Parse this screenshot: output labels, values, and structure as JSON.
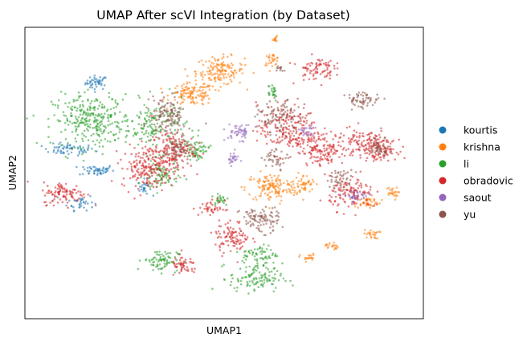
{
  "chart_data": {
    "type": "scatter",
    "title": "UMAP After scVI Integration (by Dataset)",
    "xlabel": "UMAP1",
    "ylabel": "UMAP2",
    "xticks": [],
    "yticks": [],
    "grid": false,
    "legend_position": "right",
    "xlim": [
      0,
      100
    ],
    "ylim": [
      0,
      100
    ],
    "series": [
      {
        "name": "kourtis",
        "color": "#1f77b4"
      },
      {
        "name": "krishna",
        "color": "#ff7f0e"
      },
      {
        "name": "li",
        "color": "#2ca02c"
      },
      {
        "name": "obradovic",
        "color": "#d62728"
      },
      {
        "name": "saout",
        "color": "#9467bd"
      },
      {
        "name": "yu",
        "color": "#8c564b"
      }
    ],
    "clusters": [
      {
        "series": "kourtis",
        "cx": 18,
        "cy": 81,
        "rx": 2.5,
        "ry": 2.2,
        "n": 45
      },
      {
        "series": "kourtis",
        "cx": 11,
        "cy": 58,
        "rx": 6,
        "ry": 1.8,
        "n": 60
      },
      {
        "series": "kourtis",
        "cx": 18,
        "cy": 51,
        "rx": 4,
        "ry": 1.8,
        "n": 50
      },
      {
        "series": "kourtis",
        "cx": 14,
        "cy": 40,
        "rx": 3,
        "ry": 2.5,
        "n": 35
      },
      {
        "series": "kourtis",
        "cx": 30,
        "cy": 45,
        "rx": 1.5,
        "ry": 2.5,
        "n": 25
      },
      {
        "series": "krishna",
        "cx": 49,
        "cy": 85,
        "rx": 5.5,
        "ry": 4.5,
        "n": 150
      },
      {
        "series": "krishna",
        "cx": 42,
        "cy": 77,
        "rx": 5,
        "ry": 3.5,
        "n": 120
      },
      {
        "series": "krishna",
        "cx": 63,
        "cy": 96,
        "rx": 0.8,
        "ry": 0.8,
        "n": 12
      },
      {
        "series": "krishna",
        "cx": 62,
        "cy": 89,
        "rx": 1.8,
        "ry": 1.8,
        "n": 30
      },
      {
        "series": "krishna",
        "cx": 62,
        "cy": 45,
        "rx": 6,
        "ry": 4.5,
        "n": 140
      },
      {
        "series": "krishna",
        "cx": 70,
        "cy": 46,
        "rx": 2.5,
        "ry": 3,
        "n": 45
      },
      {
        "series": "krishna",
        "cx": 86,
        "cy": 40,
        "rx": 3,
        "ry": 1.8,
        "n": 45
      },
      {
        "series": "krishna",
        "cx": 92,
        "cy": 43,
        "rx": 1.5,
        "ry": 2,
        "n": 25
      },
      {
        "series": "krishna",
        "cx": 87,
        "cy": 29,
        "rx": 1.8,
        "ry": 1.4,
        "n": 25
      },
      {
        "series": "krishna",
        "cx": 77,
        "cy": 25,
        "rx": 1.4,
        "ry": 1.4,
        "n": 20
      },
      {
        "series": "krishna",
        "cx": 71,
        "cy": 21,
        "rx": 1.8,
        "ry": 1.2,
        "n": 20
      },
      {
        "series": "li",
        "cx": 17,
        "cy": 68,
        "rx": 9,
        "ry": 8,
        "n": 300
      },
      {
        "series": "li",
        "cx": 33,
        "cy": 66,
        "rx": 7,
        "ry": 8,
        "n": 150
      },
      {
        "series": "li",
        "cx": 34,
        "cy": 49,
        "rx": 4,
        "ry": 5,
        "n": 80
      },
      {
        "series": "li",
        "cx": 43,
        "cy": 58,
        "rx": 3,
        "ry": 3,
        "n": 60
      },
      {
        "series": "li",
        "cx": 34,
        "cy": 20,
        "rx": 4,
        "ry": 3.5,
        "n": 80
      },
      {
        "series": "li",
        "cx": 58,
        "cy": 14,
        "rx": 6,
        "ry": 4.5,
        "n": 120
      },
      {
        "series": "li",
        "cx": 59,
        "cy": 22,
        "rx": 4,
        "ry": 3,
        "n": 60
      },
      {
        "series": "li",
        "cx": 62,
        "cy": 78,
        "rx": 1.5,
        "ry": 3,
        "n": 25
      },
      {
        "series": "li",
        "cx": 49,
        "cy": 41,
        "rx": 2,
        "ry": 2,
        "n": 25
      },
      {
        "series": "obradovic",
        "cx": 10,
        "cy": 43,
        "rx": 5,
        "ry": 3.5,
        "n": 100
      },
      {
        "series": "obradovic",
        "cx": 31,
        "cy": 52,
        "rx": 6,
        "ry": 6.5,
        "n": 200
      },
      {
        "series": "obradovic",
        "cx": 37,
        "cy": 58,
        "rx": 5,
        "ry": 6,
        "n": 150
      },
      {
        "series": "obradovic",
        "cx": 66,
        "cy": 65,
        "rx": 7,
        "ry": 8,
        "n": 200
      },
      {
        "series": "obradovic",
        "cx": 75,
        "cy": 58,
        "rx": 5,
        "ry": 5,
        "n": 130
      },
      {
        "series": "obradovic",
        "cx": 73,
        "cy": 86,
        "rx": 4,
        "ry": 3.5,
        "n": 80
      },
      {
        "series": "obradovic",
        "cx": 52,
        "cy": 28,
        "rx": 4,
        "ry": 5,
        "n": 100
      },
      {
        "series": "obradovic",
        "cx": 82,
        "cy": 43,
        "rx": 5,
        "ry": 5,
        "n": 120
      },
      {
        "series": "obradovic",
        "cx": 40,
        "cy": 18,
        "rx": 3,
        "ry": 3,
        "n": 50
      },
      {
        "series": "obradovic",
        "cx": 85,
        "cy": 60,
        "rx": 6,
        "ry": 5,
        "n": 130
      },
      {
        "series": "obradovic",
        "cx": 90,
        "cy": 58,
        "rx": 3,
        "ry": 3,
        "n": 60
      },
      {
        "series": "obradovic",
        "cx": 47,
        "cy": 38,
        "rx": 3,
        "ry": 2.5,
        "n": 40
      },
      {
        "series": "saout",
        "cx": 54,
        "cy": 64,
        "rx": 3,
        "ry": 2.5,
        "n": 50
      },
      {
        "series": "saout",
        "cx": 52,
        "cy": 55,
        "rx": 1.5,
        "ry": 2,
        "n": 25
      },
      {
        "series": "saout",
        "cx": 71,
        "cy": 64,
        "rx": 2,
        "ry": 2,
        "n": 25
      },
      {
        "series": "saout",
        "cx": 83,
        "cy": 42,
        "rx": 3,
        "ry": 2,
        "n": 35
      },
      {
        "series": "yu",
        "cx": 36,
        "cy": 70,
        "rx": 4,
        "ry": 6,
        "n": 120
      },
      {
        "series": "yu",
        "cx": 38,
        "cy": 58,
        "rx": 3,
        "ry": 4,
        "n": 60
      },
      {
        "series": "yu",
        "cx": 59,
        "cy": 34,
        "rx": 4.5,
        "ry": 4,
        "n": 100
      },
      {
        "series": "yu",
        "cx": 64,
        "cy": 69,
        "rx": 5,
        "ry": 5,
        "n": 100
      },
      {
        "series": "yu",
        "cx": 89,
        "cy": 59,
        "rx": 2.5,
        "ry": 3,
        "n": 50
      },
      {
        "series": "yu",
        "cx": 85,
        "cy": 75,
        "rx": 4,
        "ry": 2.5,
        "n": 60
      },
      {
        "series": "yu",
        "cx": 79,
        "cy": 48,
        "rx": 3,
        "ry": 3,
        "n": 45
      },
      {
        "series": "yu",
        "cx": 63,
        "cy": 55,
        "rx": 3,
        "ry": 3,
        "n": 40
      },
      {
        "series": "yu",
        "cx": 64,
        "cy": 86,
        "rx": 1,
        "ry": 1,
        "n": 12
      }
    ]
  }
}
